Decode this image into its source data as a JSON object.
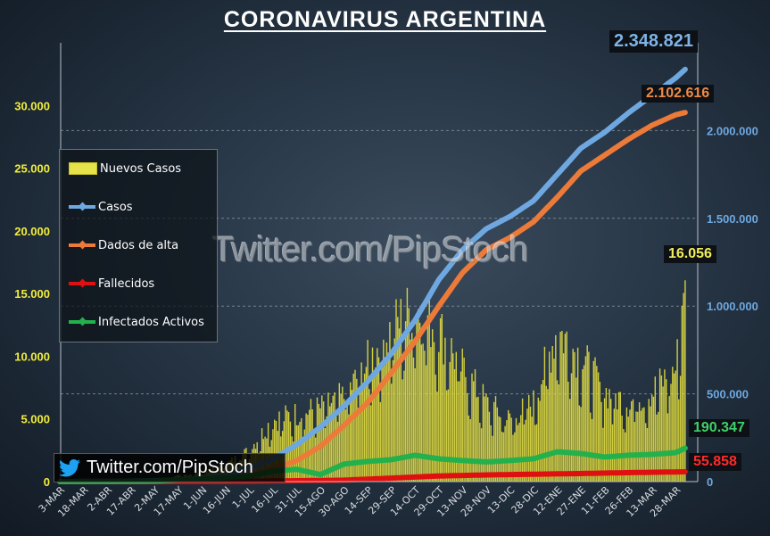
{
  "title": "CORONAVIRUS ARGENTINA",
  "watermark": "Twitter.com/PipStoch",
  "badge_text": "Twitter.com/PipStoch",
  "colors": {
    "nuevos": "#e8e33f",
    "casos": "#6fa8e0",
    "alta": "#ec7a38",
    "fallecidos": "#e01010",
    "activos": "#22b14c"
  },
  "legend": [
    {
      "label": "Nuevos Casos",
      "type": "bar",
      "color": "#e6e24a"
    },
    {
      "label": "Casos",
      "type": "line",
      "color": "#6fa8e0"
    },
    {
      "label": "Dados de alta",
      "type": "line",
      "color": "#ec7a38"
    },
    {
      "label": "Fallecidos",
      "type": "line",
      "color": "#e01010"
    },
    {
      "label": "Infectados Activos",
      "type": "line",
      "color": "#22b14c"
    }
  ],
  "callouts": {
    "casos": "2.348.821",
    "alta": "2.102.616",
    "nuevos": "16.056",
    "activos": "190.347",
    "fallecidos": "55.858"
  },
  "chart_data": {
    "type": "bar",
    "x_ticks": [
      "3-MAR",
      "18-MAR",
      "2-ABR",
      "17-ABR",
      "2-MAY",
      "17-MAY",
      "1-JUN",
      "16-JUN",
      "1-JUL",
      "16-JUL",
      "31-JUL",
      "15-AGO",
      "30-AGO",
      "14-SEP",
      "29-SEP",
      "14-OCT",
      "29-OCT",
      "13-NOV",
      "28-NOV",
      "13-DIC",
      "28-DIC",
      "12-ENE",
      "27-ENE",
      "11-FEB",
      "26-FEB",
      "13-MAR",
      "28-MAR"
    ],
    "y_left": {
      "min": 0,
      "max": 35000,
      "ticks": [
        "0",
        "5.000",
        "10.000",
        "15.000",
        "20.000",
        "25.000",
        "30.000"
      ]
    },
    "y_right": {
      "min": 0,
      "max": 2500000,
      "ticks": [
        "0",
        "500.000",
        "1.000.000",
        "1.500.000",
        "2.000.000"
      ]
    },
    "grid": true,
    "legend_position": "left",
    "series": [
      {
        "name": "Nuevos Casos",
        "axis": "left",
        "type": "bar",
        "x_index": [
          0,
          1,
          2,
          3,
          4,
          5,
          6,
          7,
          8,
          9,
          10,
          11,
          12,
          13,
          14,
          15,
          16,
          17,
          18,
          19,
          20,
          21,
          22,
          23,
          24,
          25,
          26,
          26.4
        ],
        "values": [
          0,
          50,
          100,
          100,
          150,
          500,
          800,
          1500,
          2800,
          5500,
          6000,
          6500,
          7500,
          10500,
          13500,
          15500,
          13500,
          10000,
          7000,
          5500,
          7000,
          13500,
          11000,
          8000,
          7000,
          8000,
          10000,
          16056
        ]
      },
      {
        "name": "Casos",
        "axis": "right",
        "type": "line",
        "x_index": [
          0,
          2,
          4,
          5,
          6,
          7,
          8,
          9,
          10,
          11,
          12,
          13,
          14,
          15,
          16,
          17,
          18,
          19,
          20,
          21,
          22,
          23,
          24,
          25,
          26,
          26.4
        ],
        "values": [
          0,
          1000,
          5000,
          10000,
          20000,
          35000,
          75000,
          130000,
          210000,
          310000,
          430000,
          570000,
          730000,
          920000,
          1150000,
          1320000,
          1440000,
          1510000,
          1600000,
          1750000,
          1900000,
          1990000,
          2100000,
          2200000,
          2300000,
          2348821
        ]
      },
      {
        "name": "Dados de alta",
        "axis": "right",
        "type": "line",
        "x_index": [
          0,
          4,
          6,
          7,
          8,
          9,
          10,
          11,
          12,
          13,
          14,
          15,
          16,
          17,
          18,
          19,
          20,
          21,
          22,
          23,
          24,
          25,
          26,
          26.4
        ],
        "values": [
          0,
          1000,
          5000,
          15000,
          35000,
          70000,
          120000,
          200000,
          320000,
          450000,
          620000,
          800000,
          1000000,
          1190000,
          1320000,
          1390000,
          1480000,
          1620000,
          1770000,
          1860000,
          1950000,
          2030000,
          2090000,
          2102616
        ]
      },
      {
        "name": "Fallecidos",
        "axis": "right",
        "type": "line",
        "x_index": [
          0,
          8,
          12,
          14,
          16,
          18,
          20,
          22,
          24,
          26,
          26.4
        ],
        "values": [
          0,
          2000,
          8000,
          20000,
          32000,
          38000,
          42000,
          46000,
          51000,
          55000,
          55858
        ]
      },
      {
        "name": "Infectados Activos",
        "axis": "right",
        "type": "line",
        "x_index": [
          0,
          4,
          6,
          8,
          9,
          10,
          11,
          12,
          13,
          14,
          15,
          16,
          17,
          18,
          19,
          20,
          21,
          22,
          23,
          24,
          25,
          26,
          26.4
        ],
        "values": [
          0,
          3000,
          15000,
          30000,
          60000,
          70000,
          40000,
          100000,
          115000,
          125000,
          150000,
          130000,
          120000,
          112000,
          120000,
          130000,
          170000,
          160000,
          140000,
          150000,
          155000,
          165000,
          190347
        ]
      }
    ]
  }
}
